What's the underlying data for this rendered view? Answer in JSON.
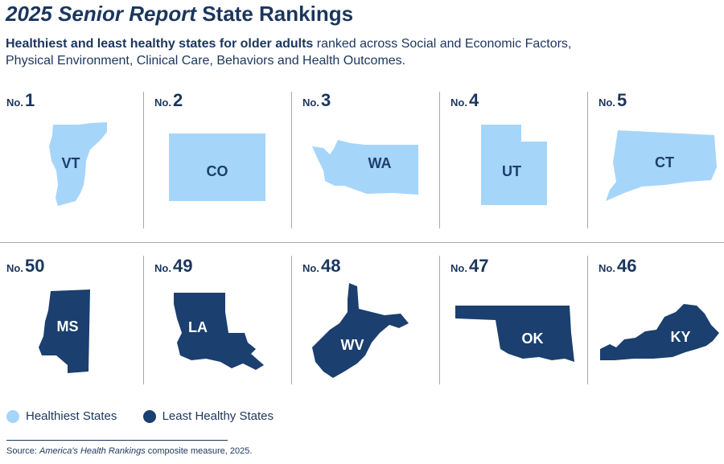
{
  "title": {
    "part_italic": "2025 Senior Report",
    "part_plain": "State Rankings"
  },
  "subtitle": {
    "bold": "Healthiest and least healthy states for older adults",
    "rest": "ranked across Social and Economic Factors, Physical Environment, Clinical Care, Behaviors and Health Outcomes."
  },
  "colors": {
    "healthiest": "#a6d5fa",
    "least_healthy": "#1b3f6e",
    "text_dark": "#1b365d",
    "text_light_state": "#1b3f6e",
    "text_dark_state": "#ffffff"
  },
  "rank_prefix": "No.",
  "chart_data": {
    "type": "table",
    "healthiest": [
      {
        "rank": 1,
        "state": "VT"
      },
      {
        "rank": 2,
        "state": "CO"
      },
      {
        "rank": 3,
        "state": "WA"
      },
      {
        "rank": 4,
        "state": "UT"
      },
      {
        "rank": 5,
        "state": "CT"
      }
    ],
    "least_healthy": [
      {
        "rank": 50,
        "state": "MS"
      },
      {
        "rank": 49,
        "state": "LA"
      },
      {
        "rank": 48,
        "state": "WV"
      },
      {
        "rank": 47,
        "state": "OK"
      },
      {
        "rank": 46,
        "state": "KY"
      }
    ]
  },
  "legend": {
    "healthiest_label": "Healthiest States",
    "least_healthy_label": "Least Healthy States"
  },
  "source": {
    "prefix": "Source:",
    "italic": "America's Health Rankings",
    "rest": "composite measure, 2025."
  }
}
